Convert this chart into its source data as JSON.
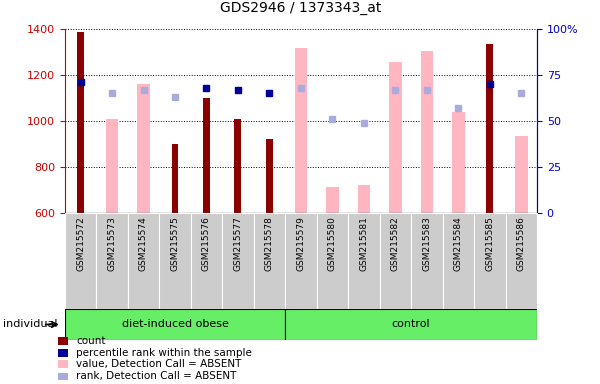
{
  "title": "GDS2946 / 1373343_at",
  "samples": [
    "GSM215572",
    "GSM215573",
    "GSM215574",
    "GSM215575",
    "GSM215576",
    "GSM215577",
    "GSM215578",
    "GSM215579",
    "GSM215580",
    "GSM215581",
    "GSM215582",
    "GSM215583",
    "GSM215584",
    "GSM215585",
    "GSM215586"
  ],
  "ylim_left": [
    600,
    1400
  ],
  "ylim_right": [
    0,
    100
  ],
  "yticks_left": [
    600,
    800,
    1000,
    1200,
    1400
  ],
  "yticks_right": [
    0,
    25,
    50,
    75,
    100
  ],
  "count_bars": {
    "GSM215572": 1385,
    "GSM215575": 900,
    "GSM215576": 1100,
    "GSM215577": 1010,
    "GSM215578": 920,
    "GSM215585": 1335
  },
  "absent_value_bars": {
    "GSM215573": 1010,
    "GSM215574": 1160,
    "GSM215579": 1315,
    "GSM215580": 715,
    "GSM215581": 720,
    "GSM215582": 1255,
    "GSM215583": 1305,
    "GSM215584": 1040,
    "GSM215586": 935
  },
  "percentile_present": {
    "GSM215572": 71,
    "GSM215576": 68,
    "GSM215577": 67,
    "GSM215578": 65,
    "GSM215585": 70
  },
  "percentile_absent": {
    "GSM215573": 65,
    "GSM215574": 67,
    "GSM215575": 63,
    "GSM215579": 68,
    "GSM215580": 51,
    "GSM215581": 49,
    "GSM215582": 67,
    "GSM215583": 67,
    "GSM215584": 57,
    "GSM215586": 65
  },
  "group1_label": "diet-induced obese",
  "group1_count": 7,
  "group2_label": "control",
  "group2_count": 8,
  "color_count": "#8B0000",
  "color_absent_value": "#FFB6C1",
  "color_percentile_present": "#000099",
  "color_percentile_absent": "#AAAADD",
  "color_group": "#66EE66",
  "color_tickbg": "#CCCCCC",
  "left_axis_color": "#CC0000",
  "right_axis_color": "#0000CC",
  "legend_items": [
    {
      "label": "count",
      "color": "#8B0000"
    },
    {
      "label": "percentile rank within the sample",
      "color": "#000099"
    },
    {
      "label": "value, Detection Call = ABSENT",
      "color": "#FFB6C1"
    },
    {
      "label": "rank, Detection Call = ABSENT",
      "color": "#AAAADD"
    }
  ]
}
